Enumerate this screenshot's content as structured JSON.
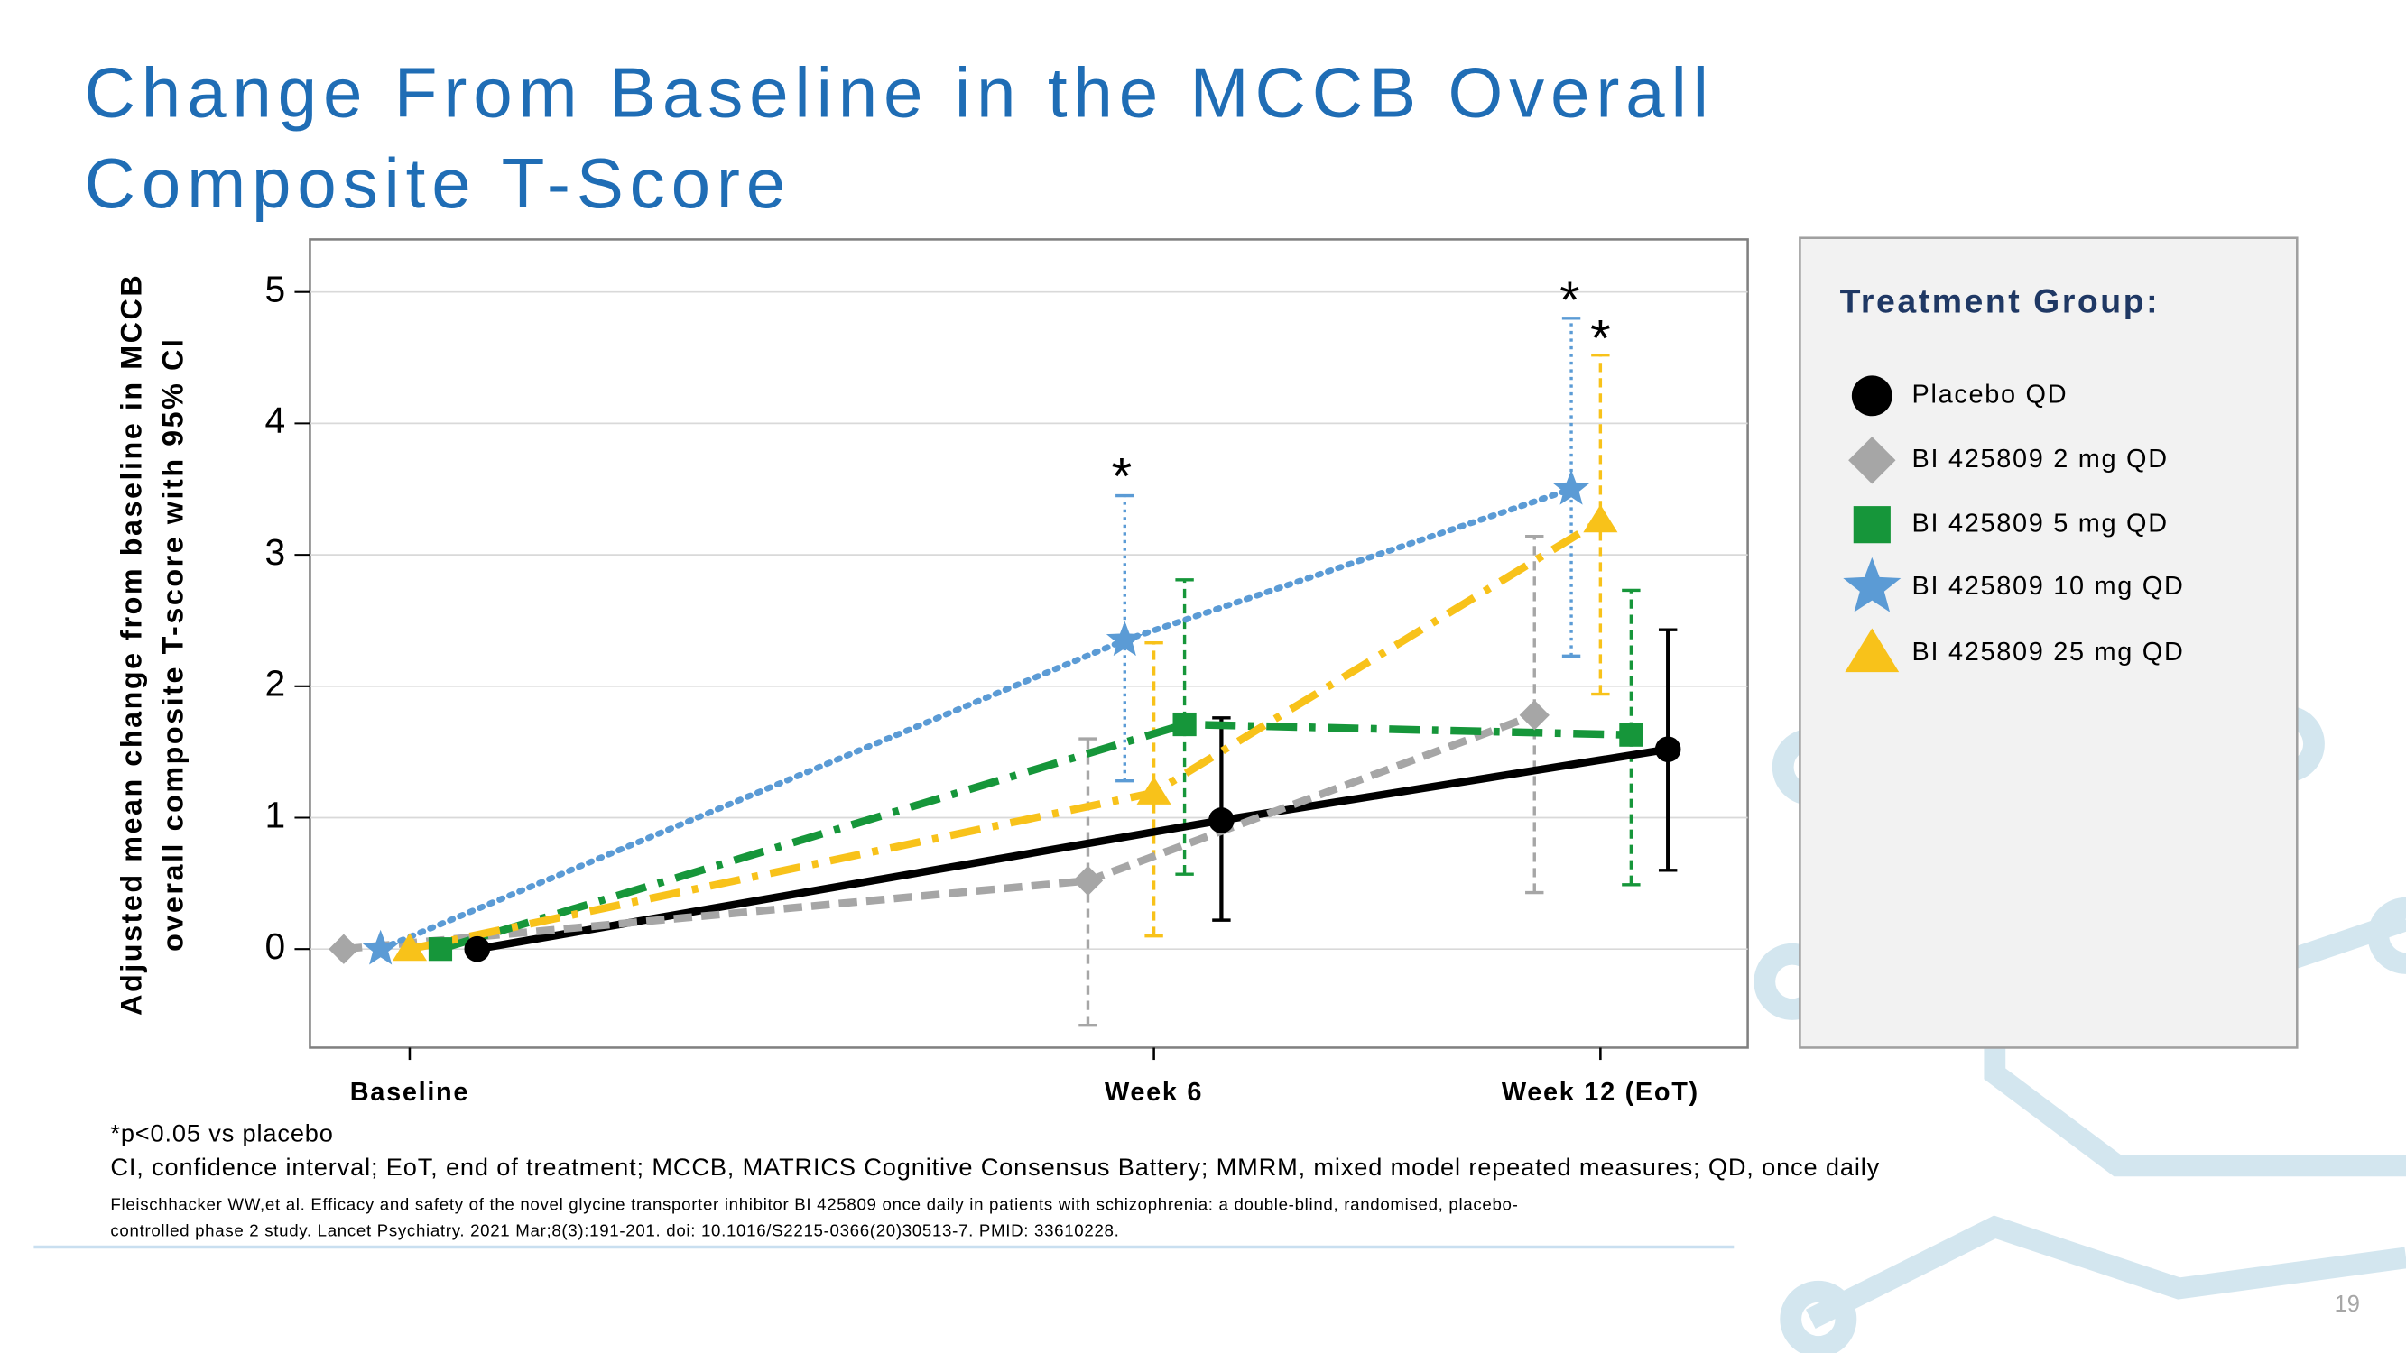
{
  "chart_data": {
    "type": "line",
    "title": [
      "Change From Baseline in the MCCB Overall",
      "Composite T-Score"
    ],
    "ylabel": [
      "Adjusted mean change from baseline in MCCB",
      "overall composite T-score with 95% CI"
    ],
    "categories": [
      "Baseline",
      "Week 6",
      "Week 12 (EoT)"
    ],
    "ylim": [
      -0.75,
      5.4
    ],
    "yticks": [
      0,
      1,
      2,
      3,
      4,
      5
    ],
    "grid": true,
    "legend_title": "Treatment Group:",
    "series": [
      {
        "name": "Placebo QD",
        "color": "#000000",
        "marker": "circle",
        "line_style": "solid",
        "values": [
          0,
          0.98,
          1.52
        ],
        "ci_low": [
          null,
          0.22,
          0.6
        ],
        "ci_high": [
          null,
          1.76,
          2.43
        ]
      },
      {
        "name": "BI 425809 2 mg QD",
        "color": "#a6a6a6",
        "marker": "diamond",
        "line_style": "dashed",
        "values": [
          0,
          0.52,
          1.78
        ],
        "ci_low": [
          null,
          -0.58,
          0.43
        ],
        "ci_high": [
          null,
          1.6,
          3.14
        ]
      },
      {
        "name": "BI 425809 5 mg QD",
        "color": "#16963a",
        "marker": "square",
        "line_style": "dashdot",
        "values": [
          0,
          1.71,
          1.63
        ],
        "ci_low": [
          null,
          0.57,
          0.49
        ],
        "ci_high": [
          null,
          2.81,
          2.73
        ]
      },
      {
        "name": "BI 425809 10 mg QD",
        "color": "#5b9bd5",
        "marker": "star",
        "line_style": "dotted",
        "values": [
          0,
          2.35,
          3.5
        ],
        "ci_low": [
          null,
          1.28,
          2.23
        ],
        "ci_high": [
          null,
          3.45,
          4.8
        ]
      },
      {
        "name": "BI 425809 25 mg QD",
        "color": "#f8c21a",
        "marker": "triangle",
        "line_style": "dashdot",
        "values": [
          0,
          1.19,
          3.26
        ],
        "ci_low": [
          null,
          0.1,
          1.94
        ],
        "ci_high": [
          null,
          2.33,
          4.52
        ]
      }
    ],
    "annotations": [
      "*",
      "*",
      "*"
    ],
    "footnotes": [
      "*p<0.05 vs placebo",
      "CI, confidence interval; EoT, end of treatment; MCCB, MATRICS Cognitive Consensus Battery; MMRM, mixed model repeated measures; QD, once daily"
    ],
    "reference": [
      "Fleischhacker WW,et al. Efficacy and safety of the novel glycine transporter inhibitor BI 425809 once daily in patients with schizophrenia: a double-blind, randomised, placebo-",
      "controlled phase 2 study. Lancet Psychiatry. 2021 Mar;8(3):191-201. doi: 10.1016/S2215-0366(20)30513-7. PMID: 33610228."
    ],
    "page_number": "19"
  }
}
